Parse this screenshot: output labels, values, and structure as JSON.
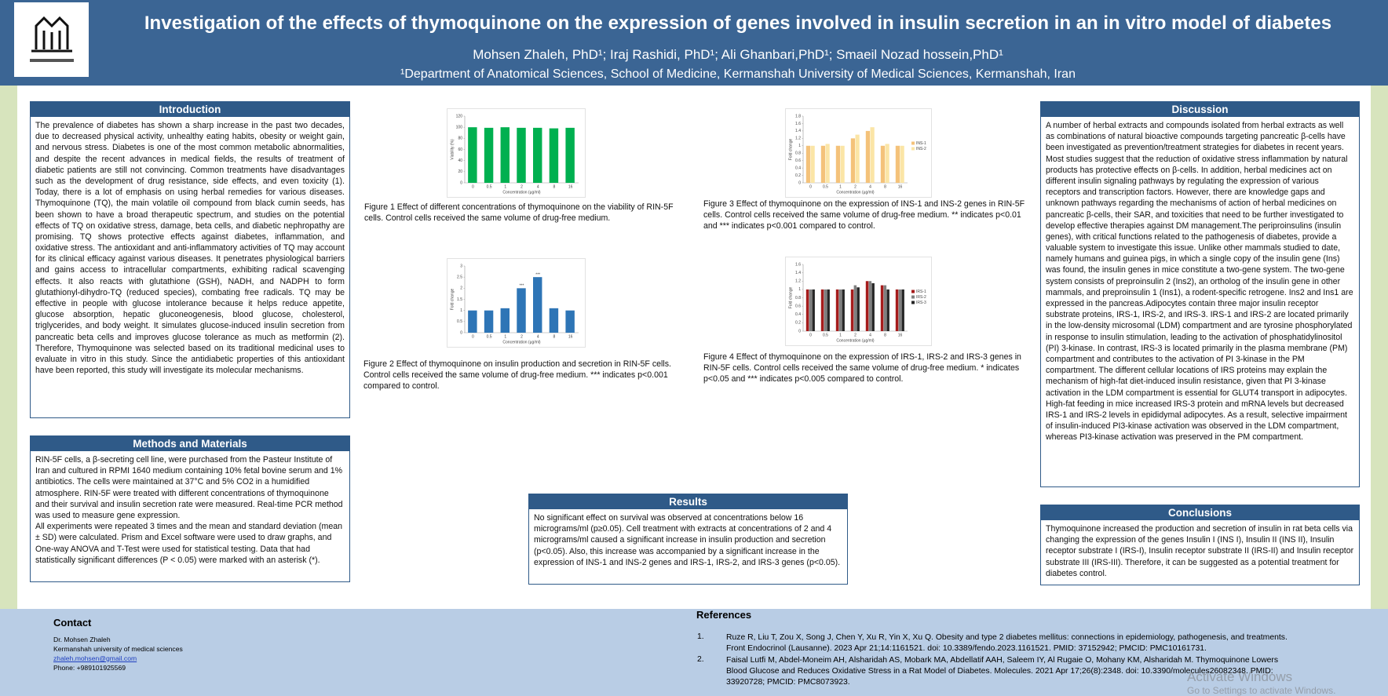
{
  "header": {
    "title": "Investigation of the effects of thymoquinone on the expression of genes involved in insulin secretion in an in vitro model of diabetes",
    "authors": "Mohsen Zhaleh, PhD¹; Iraj Rashidi, PhD¹; Ali Ghanbari,PhD¹; Smaeil Nozad hossein,PhD¹",
    "affiliation": "¹Department of Anatomical Sciences, School of Medicine, Kermanshah University of Medical Sciences, Kermanshah, Iran"
  },
  "introduction": {
    "heading": "Introduction",
    "text": "The prevalence of diabetes has shown a sharp increase in the past two decades, due to decreased physical activity, unhealthy eating habits, obesity or weight gain, and nervous stress. Diabetes is one of the most common metabolic abnormalities, and despite the recent advances in medical fields, the results of treatment of diabetic patients are still not convincing. Common treatments have disadvantages such as the development of drug resistance, side effects, and even toxicity (1). Today, there is a lot of emphasis on using herbal remedies for various diseases. Thymoquinone (TQ), the main volatile oil compound from black cumin seeds, has been shown to have a broad therapeutic spectrum, and studies on the potential effects of TQ on oxidative stress, damage, beta cells, and diabetic nephropathy are promising. TQ shows protective effects against diabetes, inflammation, and oxidative stress. The antioxidant and anti-inflammatory activities of TQ may account for its clinical efficacy against various diseases. It penetrates physiological barriers and gains access to intracellular compartments, exhibiting radical scavenging effects. It also reacts with glutathione (GSH), NADH, and NADPH to form glutathionyl-dihydro-TQ (reduced species), combating free radicals. TQ may be effective in people with glucose intolerance because it helps reduce appetite, glucose absorption, hepatic gluconeogenesis, blood glucose, cholesterol, triglycerides, and body weight. It simulates glucose-induced insulin secretion from pancreatic beta cells and improves glucose tolerance as much as metformin (2). Therefore, Thymoquinone was selected based on its traditional medicinal uses to evaluate in vitro in this study. Since the antidiabetic properties of this antioxidant have been reported, this study will investigate its molecular mechanisms."
  },
  "methods": {
    "heading": "Methods and Materials",
    "paragraphs": [
      "RIN-5F cells, a β-secreting cell line, were purchased from the Pasteur Institute of Iran and cultured in RPMI 1640 medium containing 10% fetal bovine serum and 1% antibiotics. The cells were maintained at 37°C and 5% CO2 in a humidified atmosphere. RIN-5F were treated with different concentrations of thymoquinone and their survival and insulin secretion rate were measured. Real-time PCR method was used to measure gene expression.",
      "All experiments were repeated 3 times and the mean and standard deviation (mean ± SD) were calculated. Prism and Excel software were used to draw graphs, and One-way ANOVA and T-Test were used for statistical testing. Data that had statistically significant differences (P < 0.05) were marked with an asterisk (*)."
    ]
  },
  "results": {
    "heading": "Results",
    "text": "No significant effect on survival was observed at concentrations below 16 micrograms/ml (p≥0.05). Cell treatment with extracts at concentrations of 2 and 4 micrograms/ml caused a significant increase in insulin production and secretion (p<0.05). Also, this increase was accompanied by a significant increase in the expression of INS-1 and INS-2 genes and IRS-1, IRS-2, and IRS-3 genes (p<0.05)."
  },
  "discussion": {
    "heading": "Discussion",
    "text": "A number of herbal extracts and compounds isolated from herbal extracts as well as combinations of natural bioactive compounds targeting pancreatic β-cells have been investigated as prevention/treatment strategies for diabetes in recent years. Most studies suggest that the reduction of oxidative stress inflammation by natural products has protective effects on β-cells. In addition, herbal medicines act on different insulin signaling pathways by regulating the expression of various receptors and transcription factors. However, there are knowledge gaps and unknown pathways regarding the mechanisms of action of herbal medicines on pancreatic β-cells, their SAR, and toxicities that need to be further investigated to develop effective therapies against DM management.The periproinsulins (insulin genes), with critical functions related to the pathogenesis of diabetes, provide a valuable system to investigate this issue. Unlike other mammals studied to date, namely humans and guinea pigs, in which a single copy of the insulin gene (Ins) was found, the insulin genes in mice constitute a two-gene system. The two-gene system consists of preproinsulin 2 (Ins2), an ortholog of the insulin gene in other mammals, and preproinsulin 1 (Ins1), a rodent-specific retrogene. Ins2 and Ins1 are expressed in the pancreas.Adipocytes contain three major insulin receptor substrate proteins, IRS-1, IRS-2, and IRS-3. IRS-1 and IRS-2 are located primarily in the low-density microsomal (LDM) compartment and are tyrosine phosphorylated in response to insulin stimulation, leading to the activation of phosphatidylinositol (PI) 3-kinase. In contrast, IRS-3 is located primarily in the plasma membrane (PM) compartment and contributes to the activation of PI 3-kinase in the PM compartment. The different cellular locations of IRS proteins may explain the mechanism of high-fat diet-induced insulin resistance, given that PI 3-kinase activation in the LDM compartment is essential for GLUT4 transport in adipocytes. High-fat feeding in mice increased IRS-3 protein and mRNA levels but decreased IRS-1 and IRS-2 levels in epididymal adipocytes. As a result, selective impairment of insulin-induced PI3-kinase activation was observed in the LDM compartment, whereas PI3-kinase activation was preserved in the PM compartment."
  },
  "conclusions": {
    "heading": "Conclusions",
    "text": "Thymoquinone increased the production and secretion of insulin in rat beta cells via changing the expression of the genes Insulin I (INS I), Insulin II (INS II), Insulin receptor substrate I (IRS-I), Insulin receptor substrate II (IRS-II) and Insulin receptor substrate III (IRS-III). Therefore, it can be suggested as a potential treatment for diabetes control."
  },
  "figure_captions": [
    "Figure 1 Effect of different concentrations of thymoquinone on the viability of RIN-5F cells. Control cells received the same volume of drug-free medium.",
    "Figure 2 Effect of thymoquinone on insulin production and secretion in RIN-5F cells. Control cells received the same volume of drug-free medium. *** indicates p<0.001 compared to control.",
    "Figure 3 Effect of thymoquinone on the expression of INS-1 and INS-2 genes in RIN-5F cells. Control cells received the same volume of drug-free medium. ** indicates p<0.01 and *** indicates p<0.001 compared to control.",
    "Figure 4 Effect of thymoquinone on the expression of IRS-1, IRS-2 and IRS-3 genes in RIN-5F cells. Control cells received the same volume of drug-free medium. * indicates p<0.05 and *** indicates p<0.005 compared to control."
  ],
  "chart_data": [
    {
      "type": "bar",
      "ylabel": "Viability (%)",
      "xlabel": "Concentration (µg/ml)",
      "categories": [
        "0",
        "0.5",
        "1",
        "2",
        "4",
        "8",
        "16"
      ],
      "series": [
        {
          "name": null,
          "color": "#00b050",
          "values": [
            100,
            99,
            100,
            99,
            99,
            98,
            99
          ]
        }
      ],
      "ylim": [
        0,
        120
      ],
      "yticks": [
        0,
        20,
        40,
        60,
        80,
        100,
        120
      ]
    },
    {
      "type": "bar",
      "ylabel": "Fold change",
      "xlabel": "Concentration (µg/ml)",
      "categories": [
        "0",
        "0.5",
        "1",
        "2",
        "4",
        "8",
        "16"
      ],
      "series": [
        {
          "name": null,
          "color": "#2e75b6",
          "values": [
            1,
            1,
            1.1,
            2,
            2.5,
            1.1,
            1
          ],
          "bar_labels": [
            null,
            null,
            null,
            "***",
            "***",
            null,
            null
          ]
        }
      ],
      "ylim": [
        0,
        3
      ],
      "yticks": [
        0,
        0.5,
        1,
        1.5,
        2,
        2.5,
        3
      ]
    },
    {
      "type": "bar",
      "ylabel": "Fold change",
      "xlabel": "Concentration (µg/ml)",
      "categories": [
        "0",
        "0.5",
        "1",
        "2",
        "4",
        "8",
        "16"
      ],
      "series": [
        {
          "name": "INS-1",
          "color": "#f4c27a",
          "values": [
            1,
            1,
            1,
            1.2,
            1.4,
            1,
            1
          ]
        },
        {
          "name": "INS-2",
          "color": "#fbe5a6",
          "values": [
            1,
            1.05,
            1,
            1.3,
            1.5,
            1.05,
            1
          ]
        }
      ],
      "ylim": [
        0,
        1.8
      ],
      "yticks": [
        0,
        0.2,
        0.4,
        0.6,
        0.8,
        1,
        1.2,
        1.4,
        1.6,
        1.8
      ]
    },
    {
      "type": "bar",
      "ylabel": "Fold change",
      "xlabel": "Concentration (µg/ml)",
      "categories": [
        "0",
        "0.5",
        "1",
        "2",
        "4",
        "8",
        "16"
      ],
      "series": [
        {
          "name": "IRS-1",
          "color": "#a61c1c",
          "values": [
            1,
            1,
            1,
            1,
            1.2,
            1.1,
            1
          ]
        },
        {
          "name": "IRS-2",
          "color": "#7f7f7f",
          "values": [
            1,
            1,
            1,
            1.1,
            1.2,
            1.1,
            1
          ]
        },
        {
          "name": "IRS-3",
          "color": "#262626",
          "values": [
            1,
            1,
            1,
            1.05,
            1.15,
            1,
            1
          ]
        }
      ],
      "ylim": [
        0,
        1.6
      ],
      "yticks": [
        0,
        0.2,
        0.4,
        0.6,
        0.8,
        1,
        1.2,
        1.4,
        1.6
      ]
    }
  ],
  "contact": {
    "heading": "Contact",
    "lines": [
      "Dr. Mohsen Zhaleh",
      "Kermanshah university of medical sciences",
      "zhaleh.mohsen@gmail.com",
      "Phone: +989101925569"
    ]
  },
  "references": {
    "heading": "References",
    "items": [
      {
        "number": "1.",
        "text": "Ruze R, Liu T, Zou X, Song J, Chen Y, Xu R, Yin X, Xu Q. Obesity and type 2 diabetes mellitus: connections in epidemiology, pathogenesis, and treatments. Front Endocrinol (Lausanne). 2023 Apr 21;14:1161521. doi: 10.3389/fendo.2023.1161521. PMID: 37152942; PMCID: PMC10161731."
      },
      {
        "number": "2.",
        "text": "Faisal Lutfi M, Abdel-Moneim AH, Alsharidah AS, Mobark MA, Abdellatif AAH, Saleem IY, Al Rugaie O, Mohany KM, Alsharidah M. Thymoquinone Lowers Blood Glucose and Reduces Oxidative Stress in a Rat Model of Diabetes. Molecules. 2021 Apr 17;26(8):2348. doi: 10.3390/molecules26082348. PMID: 33920728; PMCID: PMC8073923."
      }
    ]
  },
  "watermark": {
    "line1": "Activate Windows",
    "line2": "Go to Settings to activate Windows."
  }
}
